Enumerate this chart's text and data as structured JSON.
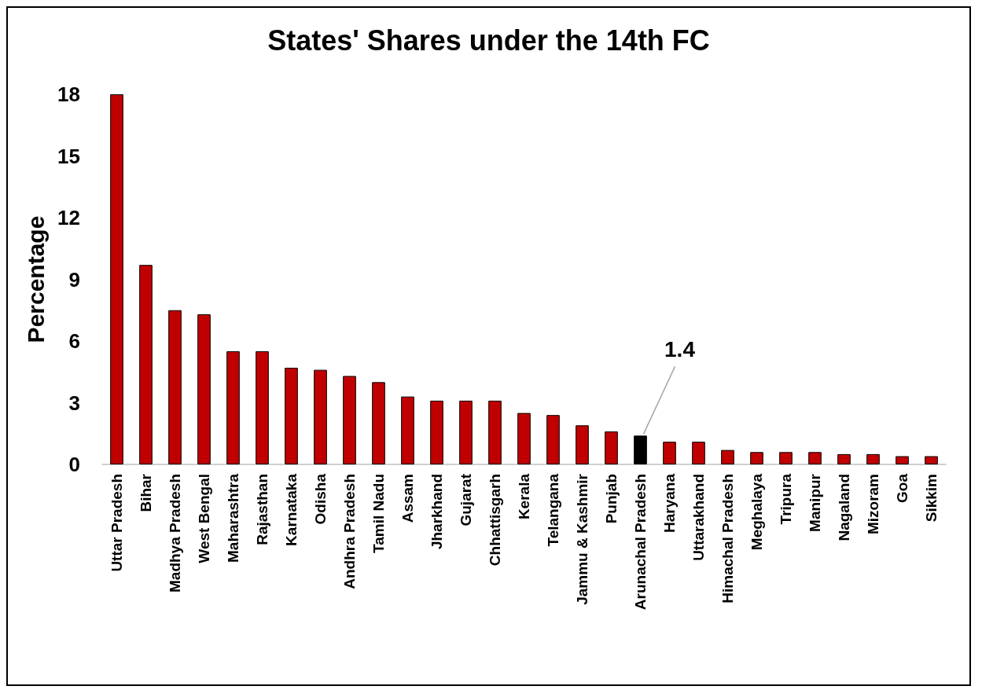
{
  "chart_data": {
    "type": "bar",
    "title": "States' Shares under the 14th FC",
    "ylabel": "Percentage",
    "categories": [
      "Uttar Pradesh",
      "Bihar",
      "Madhya Pradesh",
      "West Bengal",
      "Maharashtra",
      "Rajasthan",
      "Karnataka",
      "Odisha",
      "Andhra Pradesh",
      "Tamil Nadu",
      "Assam",
      "Jharkhand",
      "Gujarat",
      "Chhattisgarh",
      "Kerala",
      "Telangana",
      "Jammu & Kashmir",
      "Punjab",
      "Arunachal Pradesh",
      "Haryana",
      "Uttarakhand",
      "Himachal Pradesh",
      "Meghalaya",
      "Tripura",
      "Manipur",
      "Nagaland",
      "Mizoram",
      "Goa",
      "Sikkim"
    ],
    "values": [
      18.0,
      9.7,
      7.5,
      7.3,
      5.5,
      5.5,
      4.7,
      4.6,
      4.3,
      4.0,
      3.3,
      3.1,
      3.1,
      3.1,
      2.5,
      2.4,
      1.9,
      1.6,
      1.4,
      1.1,
      1.1,
      0.7,
      0.6,
      0.6,
      0.6,
      0.5,
      0.5,
      0.4,
      0.4
    ],
    "colors": [
      "#c00000",
      "#c00000",
      "#c00000",
      "#c00000",
      "#c00000",
      "#c00000",
      "#c00000",
      "#c00000",
      "#c00000",
      "#c00000",
      "#c00000",
      "#c00000",
      "#c00000",
      "#c00000",
      "#c00000",
      "#c00000",
      "#c00000",
      "#c00000",
      "#000000",
      "#c00000",
      "#c00000",
      "#c00000",
      "#c00000",
      "#c00000",
      "#c00000",
      "#c00000",
      "#c00000",
      "#c00000",
      "#c00000"
    ],
    "ylim": [
      0,
      18
    ],
    "yticks": [
      0,
      3,
      6,
      9,
      12,
      15,
      18
    ],
    "annotations": [
      {
        "text": "1.4",
        "x": "Arunachal Pradesh",
        "y": 1.4
      }
    ],
    "grid": false
  }
}
